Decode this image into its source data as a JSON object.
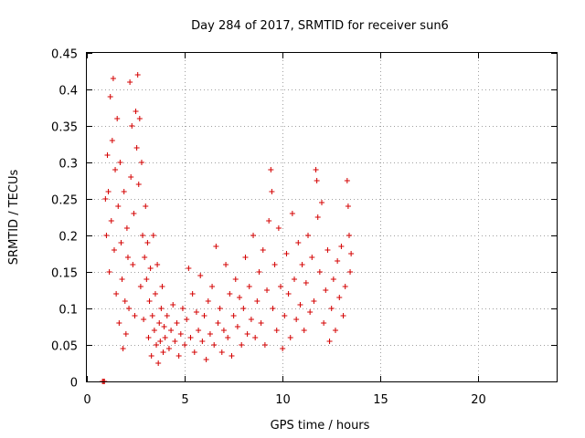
{
  "chart_data": {
    "type": "scatter",
    "title": "Day 284 of 2017, SRMTID for receiver sun6",
    "xlabel": "GPS time / hours",
    "ylabel": "SRMTID / TECUs",
    "xlim": [
      0,
      24
    ],
    "ylim": [
      0,
      0.45
    ],
    "xticks": [
      0,
      5,
      10,
      15,
      20
    ],
    "yticks": [
      0,
      0.05,
      0.1,
      0.15,
      0.2,
      0.25,
      0.3,
      0.35,
      0.4,
      0.45
    ],
    "xtick_labels": [
      "0",
      "5",
      "10",
      "15",
      "20"
    ],
    "ytick_labels": [
      "0",
      "0.05",
      "0.1",
      "0.15",
      "0.2",
      "0.25",
      "0.3",
      "0.35",
      "0.4",
      "0.45"
    ],
    "grid": true,
    "marker": "+",
    "series": [
      {
        "name": "SRMTID",
        "color": "#d40000",
        "points": [
          [
            0.8,
            0.0
          ],
          [
            0.85,
            0.0
          ],
          [
            0.9,
            0.0
          ],
          [
            0.95,
            0.25
          ],
          [
            1.0,
            0.2
          ],
          [
            1.05,
            0.31
          ],
          [
            1.1,
            0.26
          ],
          [
            1.15,
            0.15
          ],
          [
            1.2,
            0.39
          ],
          [
            1.25,
            0.22
          ],
          [
            1.3,
            0.33
          ],
          [
            1.35,
            0.415
          ],
          [
            1.4,
            0.18
          ],
          [
            1.45,
            0.29
          ],
          [
            1.5,
            0.12
          ],
          [
            1.55,
            0.36
          ],
          [
            1.6,
            0.24
          ],
          [
            1.65,
            0.08
          ],
          [
            1.7,
            0.3
          ],
          [
            1.75,
            0.19
          ],
          [
            1.8,
            0.14
          ],
          [
            1.85,
            0.045
          ],
          [
            1.9,
            0.26
          ],
          [
            1.95,
            0.11
          ],
          [
            2.0,
            0.065
          ],
          [
            2.05,
            0.21
          ],
          [
            2.1,
            0.17
          ],
          [
            2.15,
            0.1
          ],
          [
            2.2,
            0.41
          ],
          [
            2.25,
            0.28
          ],
          [
            2.3,
            0.35
          ],
          [
            2.35,
            0.16
          ],
          [
            2.4,
            0.23
          ],
          [
            2.45,
            0.09
          ],
          [
            2.5,
            0.37
          ],
          [
            2.55,
            0.32
          ],
          [
            2.6,
            0.42
          ],
          [
            2.65,
            0.27
          ],
          [
            2.7,
            0.36
          ],
          [
            2.75,
            0.13
          ],
          [
            2.8,
            0.3
          ],
          [
            2.85,
            0.2
          ],
          [
            2.9,
            0.085
          ],
          [
            2.95,
            0.17
          ],
          [
            3.0,
            0.24
          ],
          [
            3.05,
            0.14
          ],
          [
            3.1,
            0.19
          ],
          [
            3.15,
            0.06
          ],
          [
            3.2,
            0.11
          ],
          [
            3.25,
            0.155
          ],
          [
            3.3,
            0.035
          ],
          [
            3.35,
            0.09
          ],
          [
            3.4,
            0.2
          ],
          [
            3.45,
            0.07
          ],
          [
            3.5,
            0.12
          ],
          [
            3.55,
            0.05
          ],
          [
            3.6,
            0.16
          ],
          [
            3.65,
            0.025
          ],
          [
            3.7,
            0.08
          ],
          [
            3.75,
            0.055
          ],
          [
            3.8,
            0.1
          ],
          [
            3.85,
            0.13
          ],
          [
            3.9,
            0.04
          ],
          [
            3.95,
            0.075
          ],
          [
            4.0,
            0.06
          ],
          [
            4.1,
            0.09
          ],
          [
            4.2,
            0.045
          ],
          [
            4.3,
            0.07
          ],
          [
            4.4,
            0.105
          ],
          [
            4.5,
            0.055
          ],
          [
            4.6,
            0.08
          ],
          [
            4.7,
            0.035
          ],
          [
            4.8,
            0.065
          ],
          [
            4.9,
            0.1
          ],
          [
            5.0,
            0.05
          ],
          [
            5.1,
            0.085
          ],
          [
            5.2,
            0.155
          ],
          [
            5.3,
            0.06
          ],
          [
            5.4,
            0.12
          ],
          [
            5.5,
            0.04
          ],
          [
            5.6,
            0.095
          ],
          [
            5.7,
            0.07
          ],
          [
            5.8,
            0.145
          ],
          [
            5.9,
            0.055
          ],
          [
            6.0,
            0.09
          ],
          [
            6.1,
            0.03
          ],
          [
            6.2,
            0.11
          ],
          [
            6.3,
            0.065
          ],
          [
            6.4,
            0.13
          ],
          [
            6.5,
            0.05
          ],
          [
            6.6,
            0.185
          ],
          [
            6.7,
            0.08
          ],
          [
            6.8,
            0.1
          ],
          [
            6.9,
            0.04
          ],
          [
            7.0,
            0.07
          ],
          [
            7.1,
            0.16
          ],
          [
            7.2,
            0.06
          ],
          [
            7.3,
            0.12
          ],
          [
            7.4,
            0.035
          ],
          [
            7.5,
            0.09
          ],
          [
            7.6,
            0.14
          ],
          [
            7.7,
            0.075
          ],
          [
            7.8,
            0.115
          ],
          [
            7.9,
            0.05
          ],
          [
            8.0,
            0.1
          ],
          [
            8.1,
            0.17
          ],
          [
            8.2,
            0.065
          ],
          [
            8.3,
            0.13
          ],
          [
            8.4,
            0.085
          ],
          [
            8.5,
            0.2
          ],
          [
            8.6,
            0.06
          ],
          [
            8.7,
            0.11
          ],
          [
            8.8,
            0.15
          ],
          [
            8.9,
            0.08
          ],
          [
            9.0,
            0.18
          ],
          [
            9.1,
            0.05
          ],
          [
            9.2,
            0.125
          ],
          [
            9.3,
            0.22
          ],
          [
            9.4,
            0.29
          ],
          [
            9.45,
            0.26
          ],
          [
            9.5,
            0.1
          ],
          [
            9.6,
            0.16
          ],
          [
            9.7,
            0.07
          ],
          [
            9.8,
            0.21
          ],
          [
            9.9,
            0.13
          ],
          [
            10.0,
            0.045
          ],
          [
            10.1,
            0.09
          ],
          [
            10.2,
            0.175
          ],
          [
            10.3,
            0.12
          ],
          [
            10.4,
            0.06
          ],
          [
            10.5,
            0.23
          ],
          [
            10.6,
            0.14
          ],
          [
            10.7,
            0.085
          ],
          [
            10.8,
            0.19
          ],
          [
            10.9,
            0.105
          ],
          [
            11.0,
            0.16
          ],
          [
            11.1,
            0.07
          ],
          [
            11.2,
            0.135
          ],
          [
            11.3,
            0.2
          ],
          [
            11.4,
            0.095
          ],
          [
            11.5,
            0.17
          ],
          [
            11.6,
            0.11
          ],
          [
            11.7,
            0.29
          ],
          [
            11.75,
            0.275
          ],
          [
            11.8,
            0.225
          ],
          [
            11.9,
            0.15
          ],
          [
            12.0,
            0.245
          ],
          [
            12.1,
            0.08
          ],
          [
            12.2,
            0.125
          ],
          [
            12.3,
            0.18
          ],
          [
            12.4,
            0.055
          ],
          [
            12.5,
            0.1
          ],
          [
            12.6,
            0.14
          ],
          [
            12.7,
            0.07
          ],
          [
            12.8,
            0.165
          ],
          [
            12.9,
            0.115
          ],
          [
            13.0,
            0.185
          ],
          [
            13.1,
            0.09
          ],
          [
            13.2,
            0.13
          ],
          [
            13.3,
            0.275
          ],
          [
            13.35,
            0.24
          ],
          [
            13.4,
            0.2
          ],
          [
            13.45,
            0.15
          ],
          [
            13.5,
            0.175
          ]
        ]
      }
    ]
  }
}
